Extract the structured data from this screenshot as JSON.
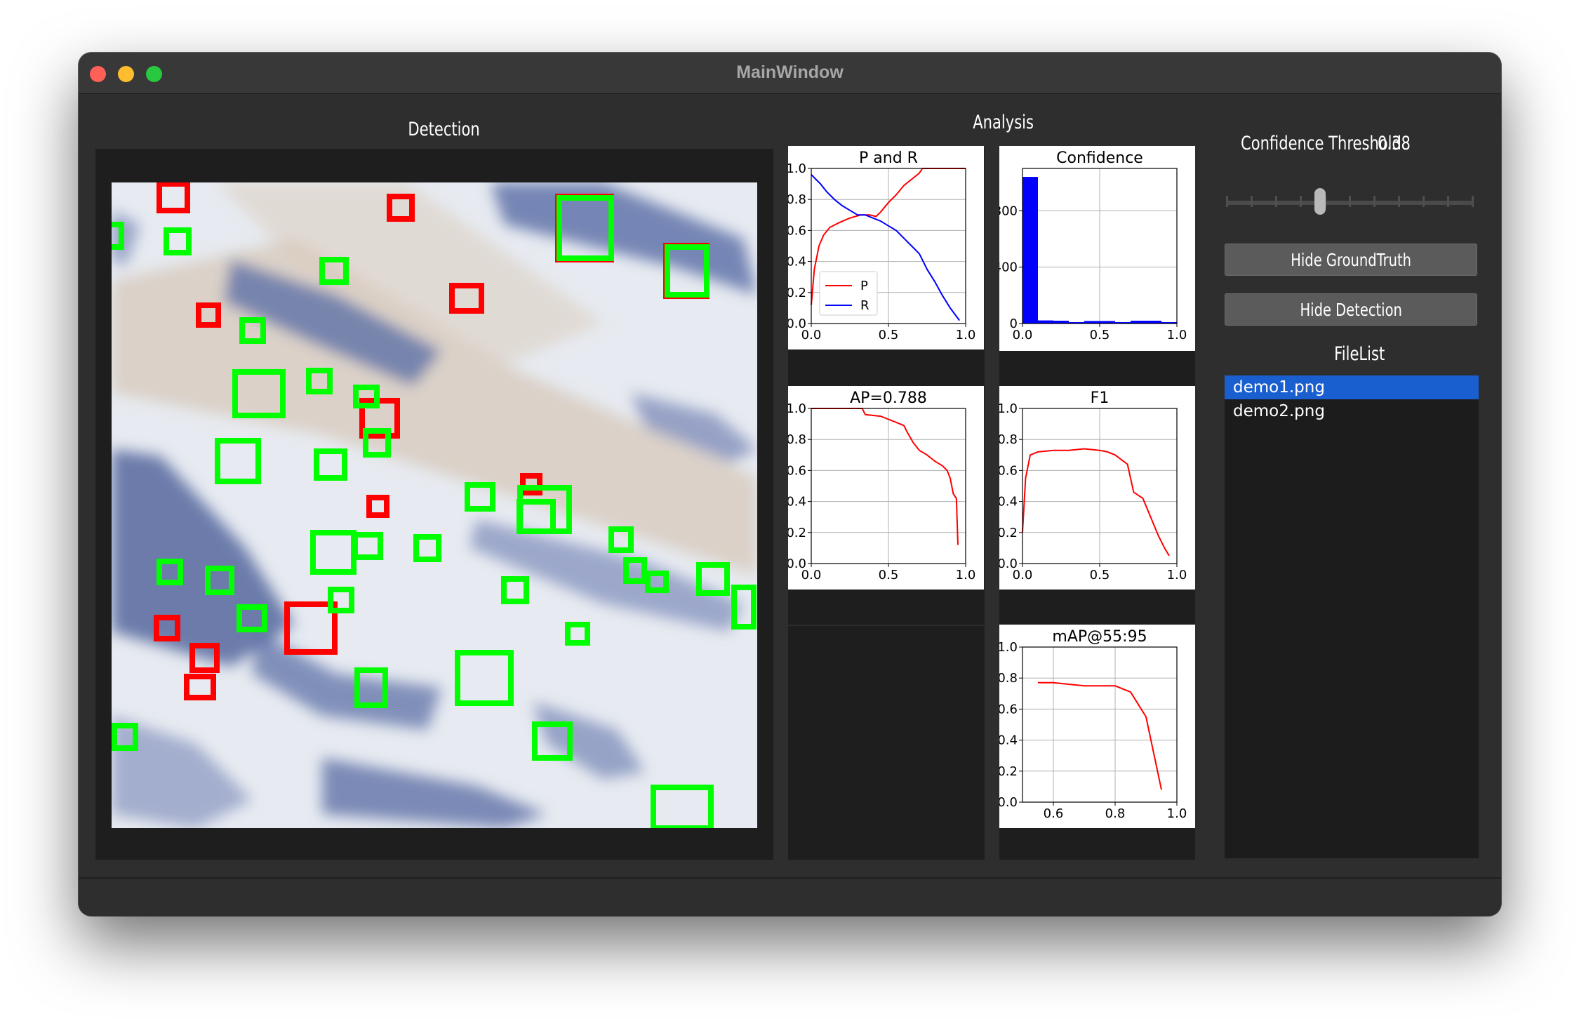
{
  "window": {
    "title": "MainWindow"
  },
  "detection": {
    "label": "Detection"
  },
  "analysis": {
    "label": "Analysis",
    "charts": [
      {
        "id": "pr",
        "title": "P and R",
        "type": "line",
        "xlim": [
          0,
          1
        ],
        "ylim": [
          0,
          1
        ],
        "xticks": [
          "0.0",
          "0.5",
          "1.0"
        ],
        "yticks": [
          "0.0",
          "0.2",
          "0.4",
          "0.6",
          "0.8",
          "1.0"
        ],
        "legend": "lower-left",
        "series": [
          {
            "name": "P",
            "color": "#ff0000",
            "points": [
              [
                0.0,
                0.12
              ],
              [
                0.02,
                0.35
              ],
              [
                0.05,
                0.5
              ],
              [
                0.08,
                0.57
              ],
              [
                0.12,
                0.62
              ],
              [
                0.18,
                0.65
              ],
              [
                0.25,
                0.68
              ],
              [
                0.32,
                0.7
              ],
              [
                0.38,
                0.7
              ],
              [
                0.42,
                0.69
              ],
              [
                0.45,
                0.72
              ],
              [
                0.5,
                0.78
              ],
              [
                0.55,
                0.83
              ],
              [
                0.6,
                0.89
              ],
              [
                0.65,
                0.93
              ],
              [
                0.7,
                0.97
              ],
              [
                0.72,
                1.0
              ],
              [
                1.0,
                1.0
              ]
            ]
          },
          {
            "name": "R",
            "color": "#0000ff",
            "points": [
              [
                0.0,
                0.96
              ],
              [
                0.03,
                0.93
              ],
              [
                0.06,
                0.9
              ],
              [
                0.1,
                0.85
              ],
              [
                0.15,
                0.8
              ],
              [
                0.2,
                0.76
              ],
              [
                0.25,
                0.73
              ],
              [
                0.3,
                0.7
              ],
              [
                0.35,
                0.7
              ],
              [
                0.4,
                0.68
              ],
              [
                0.45,
                0.66
              ],
              [
                0.5,
                0.63
              ],
              [
                0.55,
                0.6
              ],
              [
                0.6,
                0.55
              ],
              [
                0.65,
                0.5
              ],
              [
                0.7,
                0.45
              ],
              [
                0.75,
                0.35
              ],
              [
                0.8,
                0.27
              ],
              [
                0.85,
                0.18
              ],
              [
                0.9,
                0.1
              ],
              [
                0.96,
                0.02
              ]
            ]
          }
        ]
      },
      {
        "id": "conf",
        "title": "Confidence",
        "type": "bar",
        "xlim": [
          0,
          1
        ],
        "ylim": [
          0,
          1100
        ],
        "xticks": [
          "0.0",
          "0.5",
          "1.0"
        ],
        "yticks": [
          "0",
          "400",
          "800"
        ],
        "series": [
          {
            "name": "",
            "color": "#0000ff",
            "bins": [
              [
                0.0,
                0.1,
                1040
              ],
              [
                0.1,
                0.2,
                22
              ],
              [
                0.2,
                0.3,
                20
              ],
              [
                0.3,
                0.4,
                10
              ],
              [
                0.4,
                0.5,
                18
              ],
              [
                0.5,
                0.6,
                18
              ],
              [
                0.6,
                0.7,
                10
              ],
              [
                0.7,
                0.8,
                20
              ],
              [
                0.8,
                0.9,
                20
              ],
              [
                0.9,
                1.0,
                10
              ]
            ]
          }
        ]
      },
      {
        "id": "ap",
        "title": "AP=0.788",
        "type": "line",
        "xlim": [
          0,
          1
        ],
        "ylim": [
          0,
          1
        ],
        "xticks": [
          "0.0",
          "0.5",
          "1.0"
        ],
        "yticks": [
          "0.0",
          "0.2",
          "0.4",
          "0.6",
          "0.8",
          "1.0"
        ],
        "series": [
          {
            "name": "",
            "color": "#ff0000",
            "points": [
              [
                0.0,
                1.0
              ],
              [
                0.33,
                1.0
              ],
              [
                0.35,
                0.96
              ],
              [
                0.45,
                0.95
              ],
              [
                0.5,
                0.93
              ],
              [
                0.6,
                0.89
              ],
              [
                0.62,
                0.85
              ],
              [
                0.66,
                0.78
              ],
              [
                0.7,
                0.73
              ],
              [
                0.75,
                0.7
              ],
              [
                0.8,
                0.66
              ],
              [
                0.85,
                0.63
              ],
              [
                0.88,
                0.6
              ],
              [
                0.9,
                0.55
              ],
              [
                0.92,
                0.45
              ],
              [
                0.94,
                0.42
              ],
              [
                0.95,
                0.12
              ]
            ]
          }
        ]
      },
      {
        "id": "f1",
        "title": "F1",
        "type": "line",
        "xlim": [
          0,
          1
        ],
        "ylim": [
          0,
          1
        ],
        "xticks": [
          "0.0",
          "0.5",
          "1.0"
        ],
        "yticks": [
          "0.0",
          "0.2",
          "0.4",
          "0.6",
          "0.8",
          "1.0"
        ],
        "series": [
          {
            "name": "",
            "color": "#ff0000",
            "points": [
              [
                0.0,
                0.2
              ],
              [
                0.02,
                0.55
              ],
              [
                0.05,
                0.7
              ],
              [
                0.1,
                0.72
              ],
              [
                0.2,
                0.73
              ],
              [
                0.3,
                0.73
              ],
              [
                0.4,
                0.74
              ],
              [
                0.5,
                0.73
              ],
              [
                0.55,
                0.72
              ],
              [
                0.6,
                0.7
              ],
              [
                0.68,
                0.64
              ],
              [
                0.72,
                0.46
              ],
              [
                0.78,
                0.42
              ],
              [
                0.83,
                0.3
              ],
              [
                0.88,
                0.18
              ],
              [
                0.92,
                0.1
              ],
              [
                0.95,
                0.05
              ]
            ]
          }
        ]
      },
      {
        "id": "map",
        "title": "mAP@55:95",
        "type": "line",
        "xlim": [
          0.5,
          1
        ],
        "ylim": [
          0,
          1
        ],
        "xticks": [
          "0.6",
          "0.8",
          "1.0"
        ],
        "yticks": [
          "0.0",
          "0.2",
          "0.4",
          "0.6",
          "0.8",
          "1.0"
        ],
        "series": [
          {
            "name": "",
            "color": "#ff0000",
            "points": [
              [
                0.55,
                0.77
              ],
              [
                0.6,
                0.77
              ],
              [
                0.65,
                0.76
              ],
              [
                0.7,
                0.75
              ],
              [
                0.75,
                0.75
              ],
              [
                0.8,
                0.75
              ],
              [
                0.85,
                0.71
              ],
              [
                0.9,
                0.55
              ],
              [
                0.95,
                0.08
              ]
            ]
          }
        ]
      }
    ]
  },
  "controls": {
    "threshold_label": "Confidence Threshold",
    "threshold_value": "0.38",
    "threshold_fraction": 0.38,
    "hide_groundtruth": "Hide GroundTruth",
    "hide_detection": "Hide Detection",
    "filelist_label": "FileList",
    "files": [
      "demo1.png",
      "demo2.png"
    ],
    "selected_file": "demo1.png"
  },
  "colors": {
    "groundtruth_box": "#ff0000",
    "detection_box": "#00ff00",
    "selection": "#1a5fd0"
  }
}
